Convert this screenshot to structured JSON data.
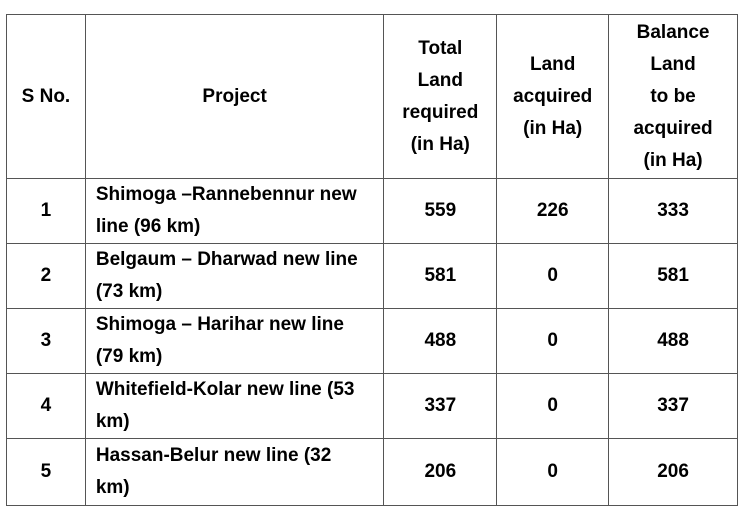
{
  "table": {
    "header": [
      [
        "S No."
      ],
      [
        "Project"
      ],
      [
        "Total",
        "Land",
        "required",
        "(in Ha)"
      ],
      [
        "Land",
        "acquired",
        "(in Ha)"
      ],
      [
        "Balance",
        "Land",
        "to be",
        "acquired",
        "(in Ha)"
      ]
    ],
    "rows": [
      [
        1,
        "Shimoga –Rannebennur new  line (96 km)",
        559,
        226,
        333
      ],
      [
        2,
        "Belgaum – Dharwad new line (73 km)",
        581,
        0,
        581
      ],
      [
        3,
        "Shimoga – Harihar new line (79 km)",
        488,
        0,
        488
      ],
      [
        4,
        "Whitefield-Kolar new line (53 km)",
        337,
        0,
        337
      ],
      [
        5,
        "Hassan-Belur new line (32 km)",
        206,
        0,
        206
      ]
    ]
  }
}
